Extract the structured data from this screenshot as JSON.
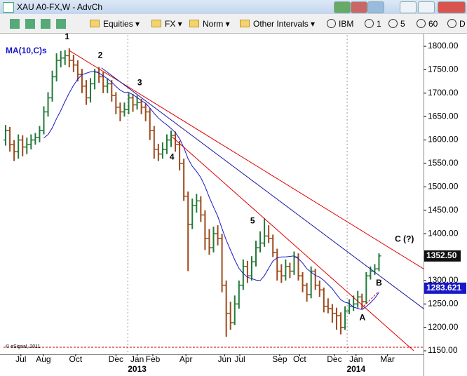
{
  "window": {
    "title": "XAU A0-FX,W - AdvCh"
  },
  "toolbar": {
    "menus": [
      "Equities",
      "FX",
      "Norm",
      "Other Intervals"
    ],
    "symbol": "IBM",
    "intervals": [
      "1",
      "5",
      "60",
      "D"
    ]
  },
  "chart_data": {
    "type": "ohlc",
    "credit": "© eSignal, 2011",
    "up_color": "#237a3a",
    "down_color": "#9c4a1c",
    "open": [
      1600,
      1620,
      1590,
      1575,
      1600,
      1585,
      1590,
      1600,
      1605,
      1620,
      1660,
      1690,
      1735,
      1770,
      1775,
      1780,
      1770,
      1760,
      1740,
      1715,
      1690,
      1720,
      1745,
      1735,
      1715,
      1720,
      1695,
      1670,
      1660,
      1665,
      1690,
      1675,
      1680,
      1670,
      1660,
      1620,
      1580,
      1570,
      1580,
      1600,
      1610,
      1590,
      1550,
      1480,
      1420,
      1460,
      1470,
      1440,
      1390,
      1370,
      1400,
      1390,
      1290,
      1230,
      1210,
      1250,
      1290,
      1330,
      1310,
      1340,
      1370,
      1380,
      1395,
      1390,
      1360,
      1320,
      1310,
      1330,
      1320,
      1350,
      1310,
      1290,
      1270,
      1320,
      1290,
      1280,
      1245,
      1240,
      1230,
      1225,
      1200,
      1235,
      1245,
      1250,
      1265,
      1255,
      1310,
      1320,
      1325
    ],
    "high": [
      1632,
      1628,
      1600,
      1612,
      1610,
      1605,
      1612,
      1615,
      1630,
      1672,
      1702,
      1748,
      1785,
      1790,
      1792,
      1796,
      1782,
      1770,
      1752,
      1728,
      1732,
      1752,
      1756,
      1745,
      1732,
      1728,
      1702,
      1680,
      1680,
      1700,
      1698,
      1695,
      1688,
      1678,
      1668,
      1630,
      1592,
      1595,
      1612,
      1620,
      1618,
      1598,
      1560,
      1490,
      1475,
      1485,
      1480,
      1450,
      1410,
      1415,
      1418,
      1400,
      1300,
      1255,
      1268,
      1300,
      1345,
      1342,
      1352,
      1385,
      1405,
      1433,
      1418,
      1398,
      1368,
      1335,
      1345,
      1338,
      1362,
      1358,
      1318,
      1295,
      1330,
      1325,
      1300,
      1285,
      1262,
      1250,
      1242,
      1232,
      1245,
      1260,
      1268,
      1278,
      1272,
      1318,
      1330,
      1335,
      1358
    ],
    "low": [
      1588,
      1575,
      1555,
      1560,
      1565,
      1570,
      1580,
      1590,
      1595,
      1612,
      1650,
      1682,
      1725,
      1755,
      1760,
      1755,
      1745,
      1725,
      1700,
      1675,
      1680,
      1708,
      1722,
      1700,
      1700,
      1682,
      1655,
      1640,
      1650,
      1655,
      1660,
      1665,
      1655,
      1640,
      1600,
      1560,
      1555,
      1560,
      1570,
      1585,
      1575,
      1535,
      1470,
      1320,
      1410,
      1445,
      1425,
      1365,
      1355,
      1360,
      1375,
      1275,
      1180,
      1195,
      1205,
      1240,
      1280,
      1295,
      1300,
      1330,
      1360,
      1372,
      1380,
      1350,
      1300,
      1295,
      1300,
      1305,
      1312,
      1300,
      1275,
      1255,
      1262,
      1280,
      1265,
      1232,
      1230,
      1210,
      1195,
      1185,
      1195,
      1228,
      1235,
      1242,
      1240,
      1250,
      1302,
      1312,
      1320
    ],
    "close": [
      1620,
      1590,
      1575,
      1600,
      1585,
      1590,
      1600,
      1605,
      1620,
      1660,
      1690,
      1735,
      1770,
      1775,
      1780,
      1770,
      1760,
      1740,
      1715,
      1690,
      1720,
      1745,
      1735,
      1715,
      1720,
      1695,
      1670,
      1660,
      1665,
      1690,
      1675,
      1680,
      1670,
      1660,
      1620,
      1580,
      1570,
      1580,
      1600,
      1610,
      1590,
      1550,
      1480,
      1420,
      1460,
      1470,
      1440,
      1390,
      1370,
      1400,
      1390,
      1290,
      1230,
      1210,
      1250,
      1290,
      1330,
      1310,
      1340,
      1370,
      1380,
      1395,
      1390,
      1360,
      1320,
      1310,
      1330,
      1320,
      1350,
      1310,
      1290,
      1270,
      1320,
      1290,
      1280,
      1245,
      1240,
      1230,
      1225,
      1200,
      1235,
      1245,
      1250,
      1265,
      1255,
      1310,
      1320,
      1325,
      1352.5
    ],
    "series": [
      {
        "name": "MA(10,C)s",
        "color": "#1818c8",
        "values": [
          null,
          null,
          null,
          null,
          null,
          null,
          null,
          null,
          null,
          1604.5,
          1611.5,
          1626,
          1645.5,
          1663,
          1682.5,
          1700.5,
          1716.5,
          1730,
          1739.5,
          1742.5,
          1745.5,
          1746.5,
          1743,
          1737,
          1731,
          1723.5,
          1714.5,
          1706.5,
          1701.5,
          1701.5,
          1697,
          1690.5,
          1684,
          1678.5,
          1668.5,
          1657,
          1647,
          1639,
          1632.5,
          1624.5,
          1616,
          1603,
          1584,
          1560,
          1544,
          1533,
          1520,
          1501,
          1478,
          1457,
          1437,
          1411,
          1386,
          1365,
          1344,
          1326,
          1315,
          1307,
          1304,
          1301,
          1300,
          1310.5,
          1326.5,
          1341.5,
          1348.5,
          1350.5,
          1350.5,
          1351.5,
          1352.5,
          1346.5,
          1337.5,
          1325,
          1318,
          1311,
          1307,
          1300.5,
          1291.5,
          1282.5,
          1270,
          1259,
          1253.5,
          1251,
          1243,
          1240.5,
          1238,
          1244.5,
          1252.5,
          1262,
          1274.75
        ],
        "last": 1283.621
      }
    ],
    "last_price": {
      "value": 1352.5,
      "label": "1352.50"
    },
    "xlim": [
      -0.5,
      98.5
    ],
    "ylim": [
      1142.6,
      1824
    ],
    "yticks": [
      {
        "value": 1150,
        "label": "1150.00"
      },
      {
        "value": 1200,
        "label": "1200.00"
      },
      {
        "value": 1250,
        "label": "1250.00"
      },
      {
        "value": 1300,
        "label": "1300.00"
      },
      {
        "value": 1350,
        "label": "1350.00"
      },
      {
        "value": 1400,
        "label": "1400.00"
      },
      {
        "value": 1450,
        "label": "1450.00"
      },
      {
        "value": 1500,
        "label": "1500.00"
      },
      {
        "value": 1550,
        "label": "1550.00"
      },
      {
        "value": 1600,
        "label": "1600.00"
      },
      {
        "value": 1650,
        "label": "1650.00"
      },
      {
        "value": 1700,
        "label": "1700.00"
      },
      {
        "value": 1750,
        "label": "1750.00"
      },
      {
        "value": 1800,
        "label": "1800.00"
      }
    ],
    "xticks": [
      {
        "value": 3.6,
        "label": "Jul"
      },
      {
        "value": 8.9,
        "label": "Aug"
      },
      {
        "value": 16.5,
        "label": "Oct"
      },
      {
        "value": 26,
        "label": "Dec"
      },
      {
        "value": 31,
        "label": "Jan"
      },
      {
        "value": 34.7,
        "label": "Feb"
      },
      {
        "value": 42.5,
        "label": "Apr"
      },
      {
        "value": 51.6,
        "label": "Jun"
      },
      {
        "value": 55.2,
        "label": "Jul"
      },
      {
        "value": 64.6,
        "label": "Sep"
      },
      {
        "value": 69.3,
        "label": "Oct"
      },
      {
        "value": 77.5,
        "label": "Dec"
      },
      {
        "value": 82.6,
        "label": "Jan"
      },
      {
        "value": 90,
        "label": "Mar"
      }
    ],
    "year_labels": [
      {
        "value": 31,
        "label": "2013"
      },
      {
        "value": 82.6,
        "label": "2014"
      }
    ],
    "year_lines": [
      28.8,
      80.5
    ],
    "hline": {
      "value": 1157.5,
      "color": "#c00000"
    },
    "trendlines": [
      {
        "x": [
          15,
          98.5
        ],
        "y": [
          1791,
          1325
        ],
        "color": "#e00000"
      },
      {
        "x": [
          22.6,
          98.5
        ],
        "y": [
          1754,
          1240
        ],
        "color": "#1a1aa0"
      },
      {
        "x": [
          39.2,
          96.2
        ],
        "y": [
          1607,
          1150
        ],
        "color": "#e00000"
      },
      {
        "x": [
          83.8,
          88
        ],
        "y": [
          1240,
          1277
        ],
        "color": "#e00000",
        "dashed": true
      }
    ],
    "annotations": [
      {
        "text": "1",
        "x": 14.5,
        "y": 1820
      },
      {
        "text": "2",
        "x": 22.3,
        "y": 1780
      },
      {
        "text": "3",
        "x": 31.6,
        "y": 1722
      },
      {
        "text": "4",
        "x": 39.2,
        "y": 1563
      },
      {
        "text": "5",
        "x": 58.2,
        "y": 1427
      },
      {
        "text": "A",
        "x": 84.1,
        "y": 1220
      },
      {
        "text": "B",
        "x": 88,
        "y": 1294
      },
      {
        "text": "C (?)",
        "x": 94,
        "y": 1388
      }
    ]
  }
}
